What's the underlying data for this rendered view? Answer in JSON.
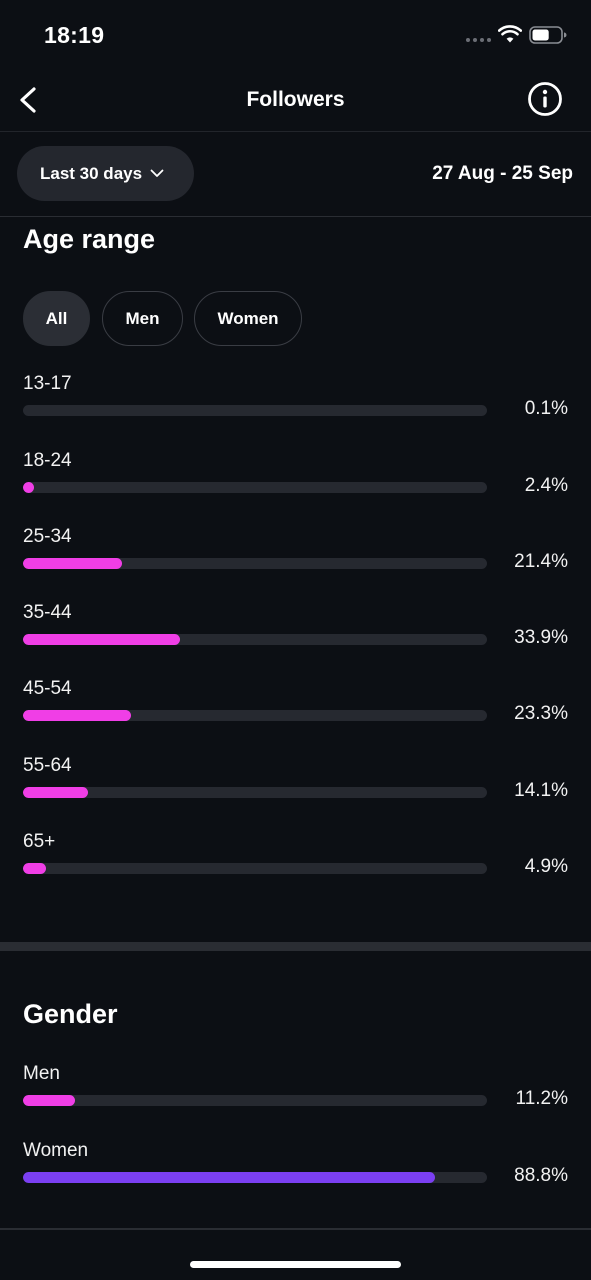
{
  "status_bar": {
    "time": "18:19",
    "battery_level": 0.6
  },
  "header": {
    "title": "Followers"
  },
  "filter": {
    "period_label": "Last 30 days",
    "date_range": "27 Aug - 25 Sep"
  },
  "age_range": {
    "title": "Age range",
    "tabs": [
      {
        "label": "All",
        "active": true
      },
      {
        "label": "Men",
        "active": false
      },
      {
        "label": "Women",
        "active": false
      }
    ],
    "rows": [
      {
        "label": "13-17",
        "value": "0.1%",
        "percent": 0.1
      },
      {
        "label": "18-24",
        "value": "2.4%",
        "percent": 2.4
      },
      {
        "label": "25-34",
        "value": "21.4%",
        "percent": 21.4
      },
      {
        "label": "35-44",
        "value": "33.9%",
        "percent": 33.9
      },
      {
        "label": "45-54",
        "value": "23.3%",
        "percent": 23.3
      },
      {
        "label": "55-64",
        "value": "14.1%",
        "percent": 14.1
      },
      {
        "label": "65+",
        "value": "4.9%",
        "percent": 4.9
      }
    ],
    "bar_color": "#f03ee6"
  },
  "gender": {
    "title": "Gender",
    "rows": [
      {
        "label": "Men",
        "value": "11.2%",
        "percent": 11.2,
        "color": "#f03ee6"
      },
      {
        "label": "Women",
        "value": "88.8%",
        "percent": 88.8,
        "color": "#7b3ff2"
      }
    ]
  },
  "colors": {
    "background": "#0c0f14",
    "track": "#262930",
    "accent_pink": "#f03ee6",
    "accent_purple": "#7b3ff2"
  }
}
